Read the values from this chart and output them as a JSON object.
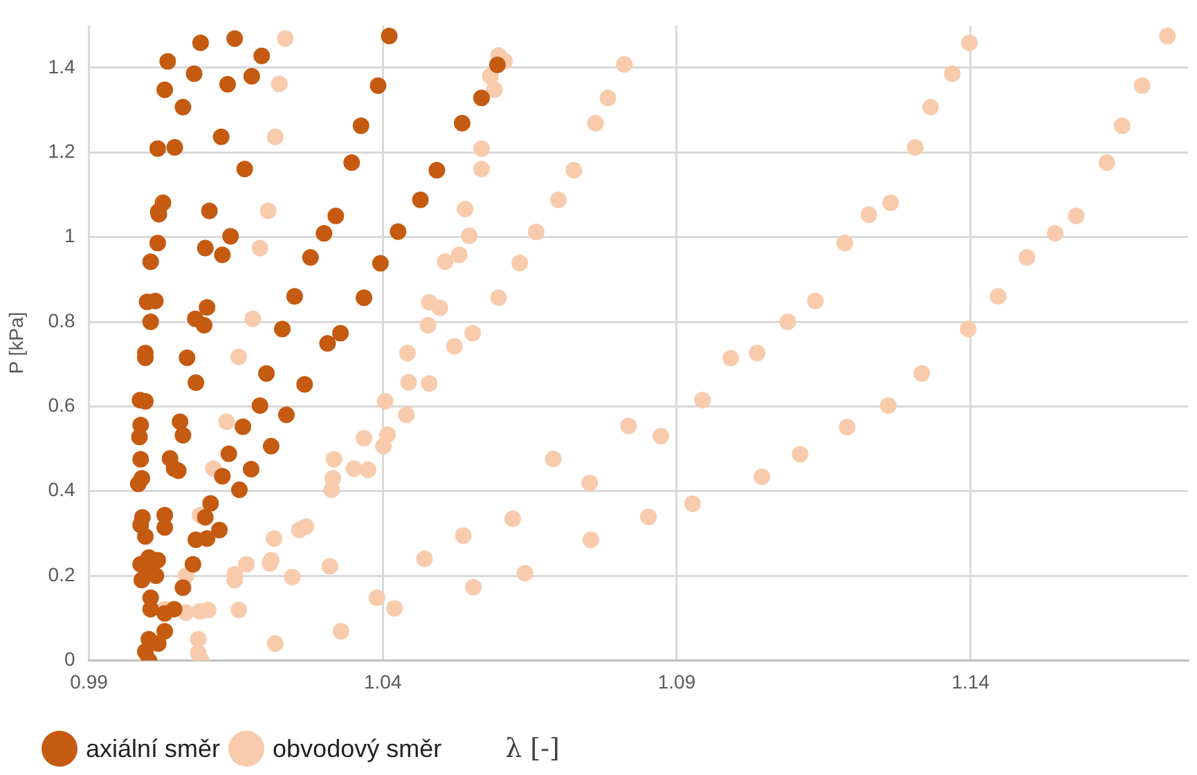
{
  "chart_data": {
    "type": "scatter",
    "xlabel": "λ [-]",
    "ylabel": "P [kPa]",
    "xlim": [
      0.99,
      1.177
    ],
    "ylim": [
      0,
      1.5
    ],
    "xticks": [
      0.99,
      1.04,
      1.09,
      1.14
    ],
    "yticks": [
      0,
      0.2,
      0.4,
      0.6,
      0.8,
      1,
      1.2,
      1.4
    ],
    "grid": true,
    "legend": "bottom",
    "marker": "circle",
    "series": [
      {
        "name": "axiální směr",
        "color": "#c55a11",
        "x": [
          1.009,
          1.0148,
          1.0034,
          1.0194,
          1.0079,
          1.0177,
          1.0029,
          1.0136,
          1.006,
          1.0411,
          1.0392,
          1.0363,
          1.0125,
          1.0017,
          1.0046,
          1.0165,
          1.0347,
          1.0464,
          1.0026,
          1.0018,
          1.0019,
          1.0105,
          1.032,
          1.03,
          1.0426,
          1.0141,
          1.0017,
          1.0098,
          1.0127,
          1.0277,
          1.0396,
          1.0005,
          0.9999,
          1.0013,
          1.0101,
          1.025,
          1.0368,
          1.0005,
          1.0081,
          1.0096,
          1.0229,
          1.0328,
          1.0306,
          0.9996,
          0.9996,
          1.0067,
          1.0202,
          1.0082,
          1.0267,
          0.9987,
          0.9996,
          1.0191,
          1.0236,
          0.9988,
          0.9986,
          1.0055,
          1.006,
          1.0162,
          1.021,
          1.0138,
          0.9988,
          1.0038,
          1.0052,
          1.0045,
          1.0176,
          1.0127,
          0.999,
          0.9984,
          1.0156,
          1.0107,
          0.9991,
          0.9988,
          0.9996,
          1.0029,
          1.0029,
          1.0098,
          1.0122,
          1.0082,
          1.0101,
          0.9988,
          1.0002,
          1.0017,
          1.0002,
          1.0014,
          0.999,
          1.0077,
          1.006,
          1.0005,
          1.0005,
          1.0045,
          1.0029,
          1.0029,
          1.0002,
          1.0018,
          0.9996,
          1.0002,
          1.0595,
          1.0568,
          1.0535,
          1.0492
        ],
        "values": [
          1.459,
          1.469,
          1.415,
          1.428,
          1.386,
          1.38,
          1.348,
          1.361,
          1.307,
          1.475,
          1.358,
          1.263,
          1.237,
          1.209,
          1.212,
          1.161,
          1.176,
          1.088,
          1.081,
          1.06,
          1.054,
          1.062,
          1.05,
          1.009,
          1.013,
          1.002,
          0.986,
          0.974,
          0.958,
          0.952,
          0.938,
          0.942,
          0.847,
          0.849,
          0.834,
          0.86,
          0.857,
          0.8,
          0.807,
          0.792,
          0.783,
          0.773,
          0.749,
          0.726,
          0.715,
          0.715,
          0.678,
          0.656,
          0.652,
          0.615,
          0.612,
          0.602,
          0.58,
          0.556,
          0.528,
          0.564,
          0.532,
          0.552,
          0.506,
          0.488,
          0.475,
          0.477,
          0.448,
          0.453,
          0.452,
          0.435,
          0.43,
          0.417,
          0.403,
          0.371,
          0.338,
          0.32,
          0.293,
          0.343,
          0.314,
          0.338,
          0.308,
          0.285,
          0.288,
          0.227,
          0.243,
          0.237,
          0.216,
          0.2,
          0.19,
          0.227,
          0.172,
          0.148,
          0.121,
          0.121,
          0.111,
          0.069,
          0.05,
          0.04,
          0.021,
          0,
          1.407,
          1.329,
          1.269,
          1.158
        ]
      },
      {
        "name": "obvodový směr",
        "color": "#f8cbad",
        "x": [
          1.0234,
          1.0224,
          1.0217,
          1.0205,
          1.0191,
          1.0179,
          1.0479,
          1.0497,
          1.0477,
          1.0155,
          1.0134,
          1.0112,
          1.0089,
          1.0442,
          1.0444,
          1.0404,
          1.044,
          1.0368,
          1.0408,
          1.0401,
          1.0317,
          1.0315,
          1.0313,
          1.0351,
          1.0375,
          1.0258,
          1.0269,
          1.0215,
          1.0168,
          1.021,
          1.0208,
          1.0148,
          1.0148,
          1.0065,
          1.0246,
          1.031,
          1.039,
          1.042,
          1.0029,
          1.0065,
          1.0089,
          1.0103,
          1.0155,
          1.0329,
          1.0217,
          1.0086,
          1.0086,
          1.0091,
          0.9998,
          1.0471,
          1.0597,
          1.0607,
          1.0811,
          1.0583,
          1.059,
          1.0783,
          1.0762,
          1.0568,
          1.0568,
          1.0725,
          1.054,
          1.0699,
          1.0547,
          1.0661,
          1.0506,
          1.053,
          1.0633,
          1.0597,
          1.0553,
          1.0522,
          1.0479,
          1.0818,
          1.0873,
          1.069,
          1.0752,
          1.0621,
          1.0852,
          1.0537,
          1.0754,
          1.0642,
          1.0554,
          1.0927,
          1.0944,
          1.0992,
          1.1037,
          1.1045,
          1.1089,
          1.1398,
          1.1369,
          1.1332,
          1.1306,
          1.1264,
          1.1227,
          1.1186,
          1.1136,
          1.111,
          1.119,
          1.126,
          1.1317,
          1.1396,
          1.1447,
          1.1496,
          1.1544,
          1.158,
          1.1632,
          1.1658,
          1.1692,
          1.1735
        ],
        "values": [
          1.469,
          1.362,
          1.237,
          1.062,
          0.974,
          0.807,
          0.846,
          0.833,
          0.792,
          0.717,
          0.564,
          0.453,
          0.343,
          0.726,
          0.657,
          0.612,
          0.58,
          0.525,
          0.533,
          0.506,
          0.475,
          0.43,
          0.403,
          0.453,
          0.45,
          0.308,
          0.316,
          0.288,
          0.227,
          0.237,
          0.229,
          0.203,
          0.19,
          0.2,
          0.197,
          0.222,
          0.148,
          0.123,
          0.121,
          0.113,
          0.116,
          0.119,
          0.119,
          0.069,
          0.04,
          0.05,
          0.018,
          0,
          0,
          0.24,
          1.429,
          1.416,
          1.408,
          1.38,
          1.348,
          1.329,
          1.269,
          1.209,
          1.161,
          1.158,
          1.066,
          1.088,
          1.003,
          1.012,
          0.942,
          0.958,
          0.939,
          0.857,
          0.773,
          0.742,
          0.654,
          0.554,
          0.53,
          0.476,
          0.419,
          0.335,
          0.339,
          0.295,
          0.285,
          0.206,
          0.173,
          0.37,
          0.615,
          0.714,
          0.726,
          0.434,
          0.8,
          1.459,
          1.386,
          1.307,
          1.212,
          1.081,
          1.053,
          0.986,
          0.849,
          0.487,
          0.551,
          0.602,
          0.678,
          0.783,
          0.86,
          0.952,
          1.009,
          1.05,
          1.176,
          1.263,
          1.358,
          1.475
        ]
      }
    ]
  }
}
